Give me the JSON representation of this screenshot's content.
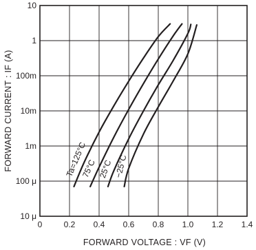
{
  "chart_data": {
    "type": "line",
    "title": "",
    "xlabel": "FORWARD VOLTAGE : VF (V)",
    "ylabel": "FORWARD CURRENT : IF (A)",
    "xlim": [
      0,
      1.4
    ],
    "ylim": [
      1e-05,
      10
    ],
    "y_scale": "log",
    "grid": true,
    "x_ticks": [
      0,
      0.2,
      0.4,
      0.6,
      0.8,
      1.0,
      1.2,
      1.4
    ],
    "x_tick_labels": [
      "0",
      "0.2",
      "0.4",
      "0.6",
      "0.8",
      "1.0",
      "1.2",
      "1.4"
    ],
    "y_ticks": [
      1e-05,
      0.0001,
      0.001,
      0.01,
      0.1,
      1,
      10
    ],
    "y_tick_labels": [
      "10 μ",
      "100 μ",
      "1m",
      "10m",
      "100m",
      "1",
      "10"
    ],
    "series": [
      {
        "name": "Ta=125°C",
        "x": [
          0.23,
          0.3,
          0.4,
          0.5,
          0.6,
          0.7,
          0.8,
          0.88
        ],
        "y": [
          7e-05,
          0.00035,
          0.0025,
          0.014,
          0.07,
          0.32,
          1.3,
          3.0
        ]
      },
      {
        "name": "75°C",
        "x": [
          0.34,
          0.4,
          0.5,
          0.6,
          0.7,
          0.8,
          0.9,
          0.96
        ],
        "y": [
          7e-05,
          0.00025,
          0.0018,
          0.011,
          0.06,
          0.3,
          1.35,
          3.0
        ]
      },
      {
        "name": "25°C",
        "x": [
          0.46,
          0.5,
          0.6,
          0.7,
          0.8,
          0.9,
          1.0,
          1.02
        ],
        "y": [
          7e-05,
          0.0002,
          0.0016,
          0.01,
          0.055,
          0.27,
          1.6,
          2.9
        ]
      },
      {
        "name": "−25°C",
        "x": [
          0.57,
          0.6,
          0.7,
          0.8,
          0.9,
          1.0,
          1.06
        ],
        "y": [
          7e-05,
          0.00023,
          0.0022,
          0.013,
          0.07,
          0.42,
          2.8
        ]
      }
    ]
  }
}
